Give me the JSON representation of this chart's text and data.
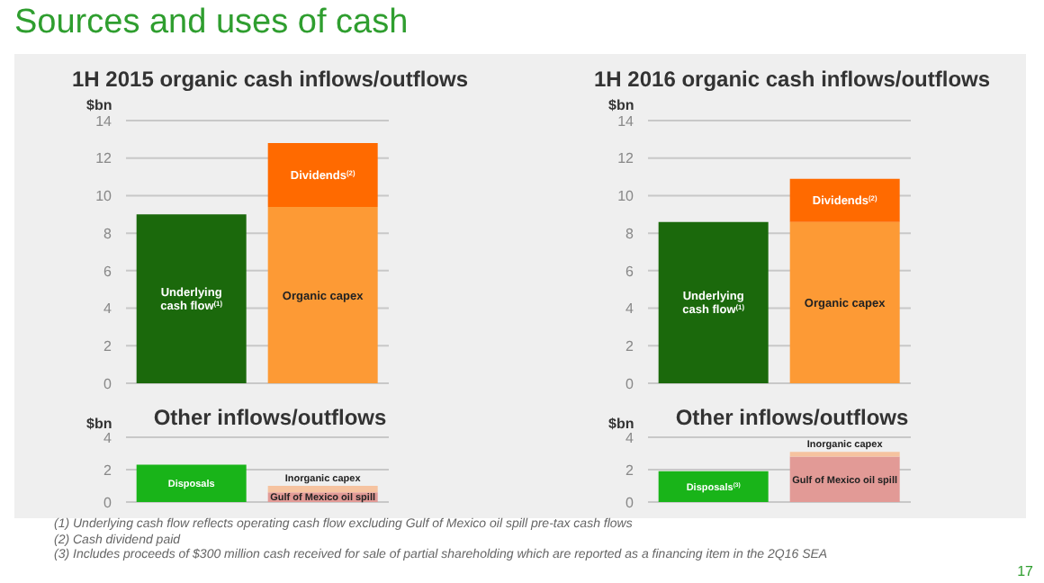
{
  "chart_data": [
    {
      "type": "bar",
      "title": "Sources and uses of cash",
      "subtitle": "1H 2015 organic cash inflows/outflows",
      "ylabel": "$bn",
      "categories": [
        null,
        null
      ],
      "stacked": true,
      "series": [
        {
          "name": "Underlying cash flow$^{(1)}$",
          "color": "#1b690c",
          "values": [
            9.0,
            null
          ]
        },
        {
          "name": "Organic capex",
          "color": "#fd9a35",
          "values": [
            null,
            9.4
          ]
        },
        {
          "name": "Dividends$^{(2)}$",
          "color": "#ff6a00",
          "values": [
            null,
            3.4
          ]
        }
      ],
      "ylim": [
        0,
        14
      ],
      "yticks": [
        0,
        2,
        4,
        6,
        8,
        10,
        12,
        14
      ],
      "grid": "y",
      "tick_labels": "y"
    },
    {
      "type": "bar",
      "title": "1H 2016 organic cash inflows/outflows",
      "ylabel": "$bn",
      "categories": [
        null,
        null
      ],
      "stacked": true,
      "series": [
        {
          "name": "Underlying cash flow$^{(1)}$",
          "color": "#1b690c",
          "values": [
            8.6,
            null
          ]
        },
        {
          "name": "Organic capex",
          "color": "#fd9a35",
          "values": [
            null,
            8.6
          ]
        },
        {
          "name": "Dividends$^{(2)}$",
          "color": "#ff6a00",
          "values": [
            null,
            2.3
          ]
        }
      ],
      "ylim": [
        0,
        14
      ],
      "yticks": [
        0,
        2,
        4,
        6,
        8,
        10,
        12,
        14
      ],
      "grid": "y",
      "tick_labels": "y"
    },
    {
      "type": "bar",
      "title": "Other inflows/outflows",
      "ylabel": "$bn",
      "categories": [
        null,
        null
      ],
      "stacked": true,
      "series": [
        {
          "name": "Disposals",
          "color": "#19b419",
          "values": [
            2.3,
            null
          ]
        },
        {
          "name": "Gulf of Mexico oil spill",
          "color": "#e29a96",
          "values": [
            null,
            0.6
          ]
        },
        {
          "name": "Inorganic capex",
          "color": "#f6c3a0",
          "values": [
            null,
            0.4
          ]
        }
      ],
      "ylim": [
        0,
        4
      ],
      "yticks": [
        0,
        2,
        4
      ],
      "grid": "y",
      "tick_labels": "y",
      "annotations": [
        "(1) Underlying cash flow reflects operating cash flow excluding Gulf of Mexico oil spill pre-tax cash flows",
        "(2) Cash dividend paid",
        "(3) Includes proceeds of $300 million cash received for sale of partial shareholding which are reported as a financing item in the 2Q16 SEA",
        "17"
      ]
    },
    {
      "type": "bar",
      "title": "Other inflows/outflows",
      "ylabel": "$bn",
      "categories": [
        null,
        null
      ],
      "stacked": true,
      "series": [
        {
          "name": "Disposals$^{(3)}$",
          "color": "#19b419",
          "values": [
            1.9,
            null
          ]
        },
        {
          "name": "Gulf of Mexico oil spill",
          "color": "#e29a96",
          "values": [
            null,
            2.8
          ]
        },
        {
          "name": "Inorganic capex",
          "color": "#f6c3a0",
          "values": [
            null,
            0.3
          ]
        }
      ],
      "ylim": [
        0,
        4
      ],
      "yticks": [
        0,
        2,
        4
      ],
      "grid": "y",
      "tick_labels": "y"
    }
  ]
}
